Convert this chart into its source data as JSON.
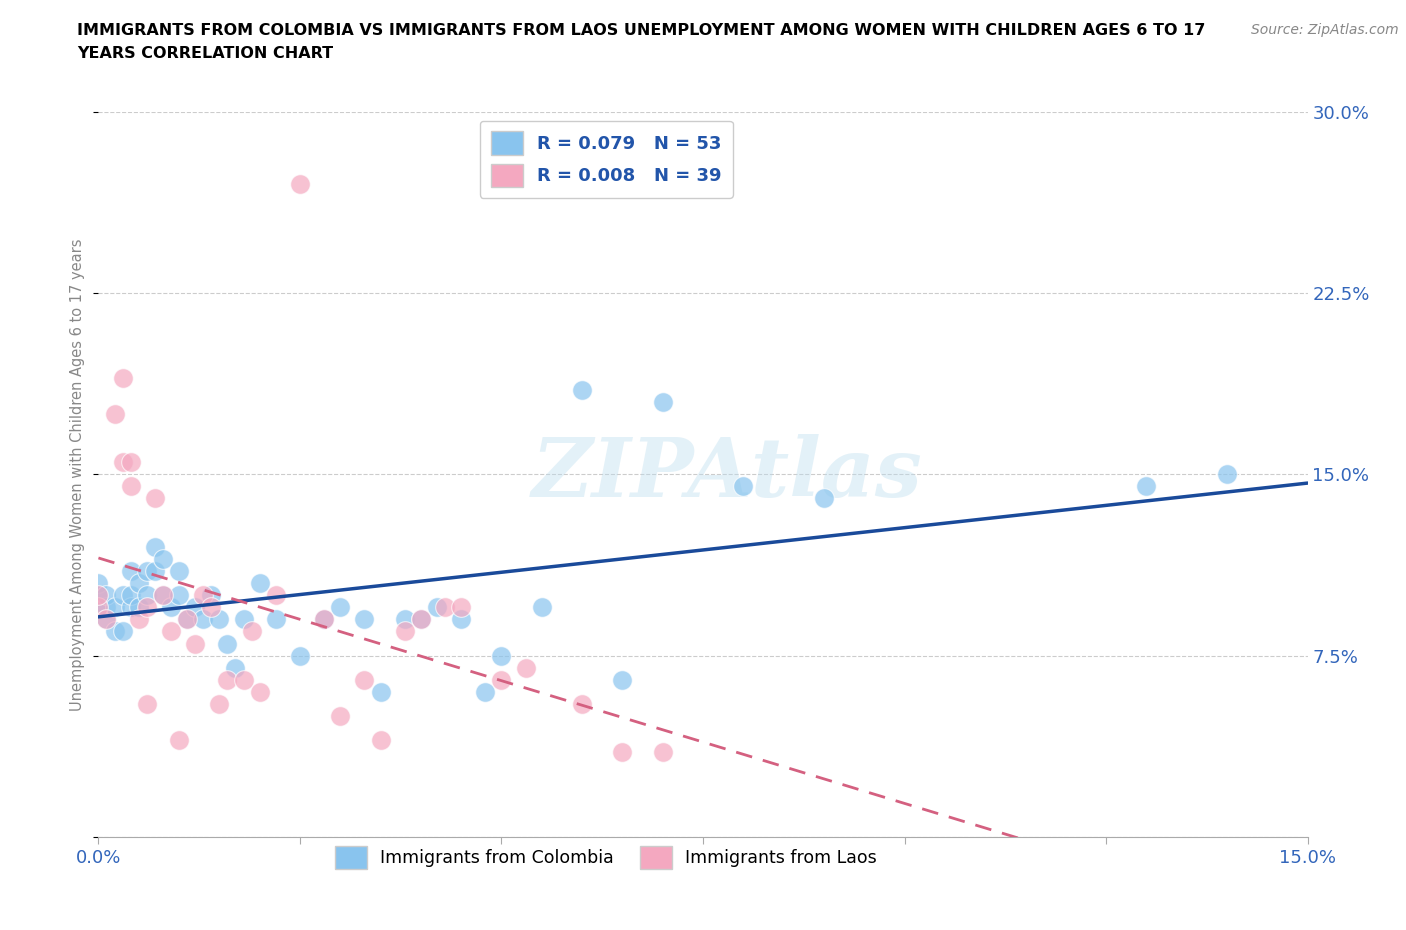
{
  "title_line1": "IMMIGRANTS FROM COLOMBIA VS IMMIGRANTS FROM LAOS UNEMPLOYMENT AMONG WOMEN WITH CHILDREN AGES 6 TO 17",
  "title_line2": "YEARS CORRELATION CHART",
  "source": "Source: ZipAtlas.com",
  "ylabel": "Unemployment Among Women with Children Ages 6 to 17 years",
  "xlim": [
    0.0,
    0.15
  ],
  "ylim": [
    0.0,
    0.3
  ],
  "xticks": [
    0.0,
    0.025,
    0.05,
    0.075,
    0.1,
    0.125,
    0.15
  ],
  "yticks": [
    0.0,
    0.075,
    0.15,
    0.225,
    0.3
  ],
  "xtick_labels": [
    "0.0%",
    "",
    "",
    "",
    "",
    "",
    "15.0%"
  ],
  "ytick_labels": [
    "",
    "7.5%",
    "15.0%",
    "22.5%",
    "30.0%"
  ],
  "color_colombia": "#89C4EE",
  "color_laos": "#F4A8C0",
  "line_color_colombia": "#1A4A9A",
  "line_color_laos": "#D46080",
  "R_colombia": 0.079,
  "N_colombia": 53,
  "R_laos": 0.008,
  "N_laos": 39,
  "watermark": "ZIPAtlas",
  "colombia_x": [
    0.0,
    0.0,
    0.0,
    0.001,
    0.001,
    0.001,
    0.002,
    0.002,
    0.003,
    0.003,
    0.004,
    0.004,
    0.004,
    0.005,
    0.005,
    0.006,
    0.006,
    0.007,
    0.007,
    0.008,
    0.008,
    0.009,
    0.01,
    0.01,
    0.011,
    0.012,
    0.013,
    0.014,
    0.015,
    0.016,
    0.017,
    0.018,
    0.02,
    0.022,
    0.025,
    0.028,
    0.03,
    0.033,
    0.035,
    0.038,
    0.04,
    0.042,
    0.045,
    0.048,
    0.05,
    0.055,
    0.06,
    0.065,
    0.07,
    0.08,
    0.09,
    0.13,
    0.14
  ],
  "colombia_y": [
    0.095,
    0.1,
    0.105,
    0.09,
    0.095,
    0.1,
    0.085,
    0.095,
    0.085,
    0.1,
    0.095,
    0.1,
    0.11,
    0.095,
    0.105,
    0.1,
    0.11,
    0.12,
    0.11,
    0.1,
    0.115,
    0.095,
    0.1,
    0.11,
    0.09,
    0.095,
    0.09,
    0.1,
    0.09,
    0.08,
    0.07,
    0.09,
    0.105,
    0.09,
    0.075,
    0.09,
    0.095,
    0.09,
    0.06,
    0.09,
    0.09,
    0.095,
    0.09,
    0.06,
    0.075,
    0.095,
    0.185,
    0.065,
    0.18,
    0.145,
    0.14,
    0.145,
    0.15
  ],
  "laos_x": [
    0.0,
    0.0,
    0.001,
    0.002,
    0.003,
    0.003,
    0.004,
    0.004,
    0.005,
    0.006,
    0.006,
    0.007,
    0.008,
    0.009,
    0.01,
    0.011,
    0.012,
    0.013,
    0.014,
    0.015,
    0.016,
    0.018,
    0.019,
    0.02,
    0.022,
    0.025,
    0.028,
    0.03,
    0.033,
    0.035,
    0.038,
    0.04,
    0.043,
    0.045,
    0.05,
    0.053,
    0.06,
    0.065,
    0.07
  ],
  "laos_y": [
    0.095,
    0.1,
    0.09,
    0.175,
    0.19,
    0.155,
    0.145,
    0.155,
    0.09,
    0.055,
    0.095,
    0.14,
    0.1,
    0.085,
    0.04,
    0.09,
    0.08,
    0.1,
    0.095,
    0.055,
    0.065,
    0.065,
    0.085,
    0.06,
    0.1,
    0.27,
    0.09,
    0.05,
    0.065,
    0.04,
    0.085,
    0.09,
    0.095,
    0.095,
    0.065,
    0.07,
    0.055,
    0.035,
    0.035
  ]
}
